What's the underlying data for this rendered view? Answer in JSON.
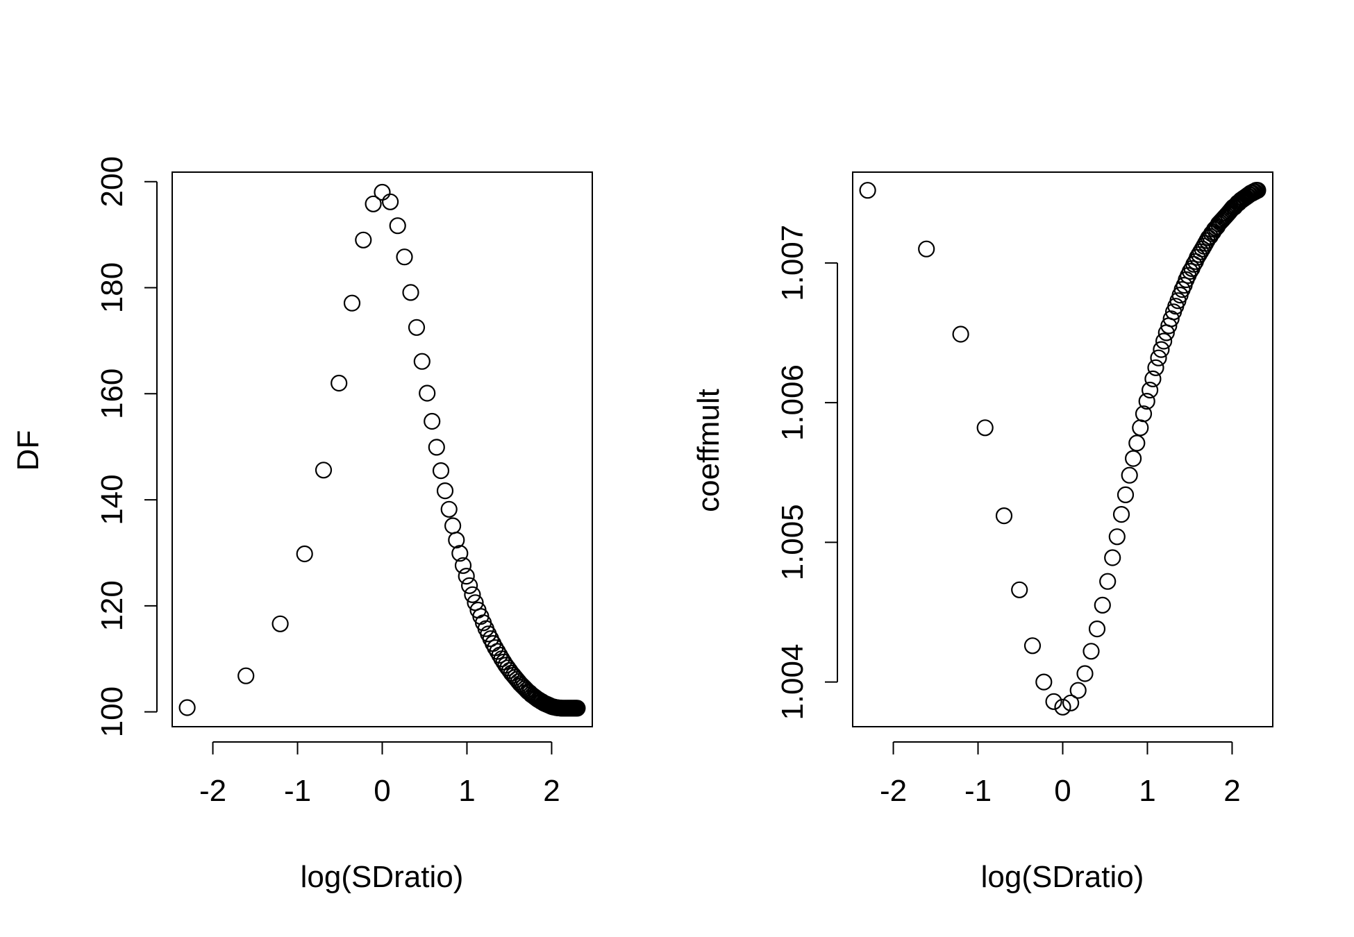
{
  "chart_data": [
    {
      "type": "scatter",
      "xlabel": "log(SDratio)",
      "ylabel": "DF",
      "xlim": [
        -2.48,
        2.48
      ],
      "ylim": [
        97.2,
        201.8
      ],
      "xticks": [
        -2,
        -1,
        0,
        1,
        2
      ],
      "xtick_labels": [
        "-2",
        "-1",
        "0",
        "1",
        "2"
      ],
      "yticks": [
        100,
        120,
        140,
        160,
        180,
        200
      ],
      "ytick_labels": [
        "100",
        "120",
        "140",
        "160",
        "180",
        "200"
      ],
      "grid": false,
      "legend": "none",
      "marker": "open-circle",
      "x": [
        -2.3026,
        -1.6094,
        -1.204,
        -0.9163,
        -0.6931,
        -0.5108,
        -0.3567,
        -0.2231,
        -0.1054,
        0,
        0.0953,
        0.1823,
        0.2624,
        0.3365,
        0.4055,
        0.47,
        0.5306,
        0.5878,
        0.6419,
        0.6931,
        0.7419,
        0.7885,
        0.8329,
        0.8755,
        0.9163,
        0.9555,
        0.9933,
        1.0296,
        1.0647,
        1.0986,
        1.1314,
        1.1632,
        1.1939,
        1.2238,
        1.2528,
        1.2809,
        1.3083,
        1.335,
        1.361,
        1.3863,
        1.411,
        1.4351,
        1.4586,
        1.4816,
        1.5041,
        1.5261,
        1.5476,
        1.5686,
        1.5892,
        1.6094,
        1.6292,
        1.6487,
        1.6677,
        1.6864,
        1.7047,
        1.7228,
        1.7405,
        1.7579,
        1.775,
        1.7918,
        1.8083,
        1.8245,
        1.8405,
        1.8563,
        1.8718,
        1.8871,
        1.9021,
        1.9169,
        1.9315,
        1.9459,
        1.9601,
        1.9741,
        1.9879,
        2.0015,
        2.0149,
        2.0281,
        2.0412,
        2.0541,
        2.0669,
        2.0794,
        2.0919,
        2.1041,
        2.1163,
        2.1282,
        2.1401,
        2.1518,
        2.1633,
        2.1748,
        2.1861,
        2.1972,
        2.2083,
        2.2192,
        2.23,
        2.2407,
        2.2513,
        2.2618,
        2.2721,
        2.2824,
        2.2925,
        2.3026
      ],
      "y": [
        100.8,
        106.8,
        116.6,
        129.8,
        145.6,
        162.0,
        177.1,
        189.0,
        195.8,
        198.0,
        196.2,
        191.7,
        185.8,
        179.1,
        172.5,
        166.1,
        160.1,
        154.8,
        149.9,
        145.5,
        141.7,
        138.2,
        135.1,
        132.4,
        129.9,
        127.6,
        125.6,
        123.8,
        122.1,
        120.6,
        119.2,
        118.0,
        116.8,
        115.7,
        114.7,
        113.8,
        112.9,
        112.1,
        111.4,
        110.7,
        110.0,
        109.4,
        108.8,
        108.3,
        107.8,
        107.3,
        106.9,
        106.5,
        106.1,
        105.7,
        105.3,
        105.0,
        104.7,
        104.4,
        104.1,
        103.8,
        103.6,
        103.3,
        103.1,
        102.9,
        102.7,
        102.5,
        102.3,
        102.2,
        102.0,
        101.9,
        101.7,
        101.6,
        101.5,
        101.4,
        101.3,
        101.2,
        101.1,
        101.0,
        100.95,
        100.9,
        100.85,
        100.8,
        100.78,
        100.76,
        100.74,
        100.72,
        100.7,
        100.7,
        100.7,
        100.7,
        100.7,
        100.7,
        100.7,
        100.7,
        100.7,
        100.7,
        100.7,
        100.7,
        100.7,
        100.7,
        100.7,
        100.7,
        100.7,
        100.7
      ]
    },
    {
      "type": "scatter",
      "xlabel": "log(SDratio)",
      "ylabel": "coeffmult",
      "xlim": [
        -2.48,
        2.48
      ],
      "ylim": [
        1.00368,
        1.00765
      ],
      "xticks": [
        -2,
        -1,
        0,
        1,
        2
      ],
      "xtick_labels": [
        "-2",
        "-1",
        "0",
        "1",
        "2"
      ],
      "yticks": [
        1.004,
        1.005,
        1.006,
        1.007
      ],
      "ytick_labels": [
        "1.004",
        "1.005",
        "1.006",
        "1.007"
      ],
      "grid": false,
      "legend": "none",
      "marker": "open-circle",
      "x": [
        -2.3026,
        -1.6094,
        -1.204,
        -0.9163,
        -0.6931,
        -0.5108,
        -0.3567,
        -0.2231,
        -0.1054,
        0,
        0.0953,
        0.1823,
        0.2624,
        0.3365,
        0.4055,
        0.47,
        0.5306,
        0.5878,
        0.6419,
        0.6931,
        0.7419,
        0.7885,
        0.8329,
        0.8755,
        0.9163,
        0.9555,
        0.9933,
        1.0296,
        1.0647,
        1.0986,
        1.1314,
        1.1632,
        1.1939,
        1.2238,
        1.2528,
        1.2809,
        1.3083,
        1.335,
        1.361,
        1.3863,
        1.411,
        1.4351,
        1.4586,
        1.4816,
        1.5041,
        1.5261,
        1.5476,
        1.5686,
        1.5892,
        1.6094,
        1.6292,
        1.6487,
        1.6677,
        1.6864,
        1.7047,
        1.7228,
        1.7405,
        1.7579,
        1.775,
        1.7918,
        1.8083,
        1.8245,
        1.8405,
        1.8563,
        1.8718,
        1.8871,
        1.9021,
        1.9169,
        1.9315,
        1.9459,
        1.9601,
        1.9741,
        1.9879,
        2.0015,
        2.0149,
        2.0281,
        2.0412,
        2.0541,
        2.0669,
        2.0794,
        2.0919,
        2.1041,
        2.1163,
        2.1282,
        2.1401,
        2.1518,
        2.1633,
        2.1748,
        2.1861,
        2.1972,
        2.2083,
        2.2192,
        2.23,
        2.2407,
        2.2513,
        2.2618,
        2.2721,
        2.2824,
        2.2925,
        2.3026
      ],
      "y": [
        1.00752,
        1.0071,
        1.00649,
        1.00582,
        1.00519,
        1.00466,
        1.00426,
        1.004,
        1.00386,
        1.00382,
        1.00385,
        1.00394,
        1.00406,
        1.00422,
        1.00438,
        1.00455,
        1.00472,
        1.00489,
        1.00504,
        1.0052,
        1.00534,
        1.00548,
        1.0056,
        1.00571,
        1.00582,
        1.00592,
        1.00601,
        1.00609,
        1.00617,
        1.00625,
        1.00632,
        1.00638,
        1.00644,
        1.0065,
        1.00655,
        1.0066,
        1.00665,
        1.00669,
        1.00673,
        1.00677,
        1.00681,
        1.00684,
        1.00688,
        1.00691,
        1.00694,
        1.00696,
        1.00699,
        1.00701,
        1.00704,
        1.00706,
        1.00708,
        1.0071,
        1.00712,
        1.00714,
        1.00716,
        1.00718,
        1.00719,
        1.00721,
        1.00722,
        1.00724,
        1.00725,
        1.00726,
        1.00728,
        1.00729,
        1.0073,
        1.00731,
        1.00732,
        1.00733,
        1.00734,
        1.00735,
        1.00736,
        1.00737,
        1.00738,
        1.00739,
        1.0074,
        1.0074,
        1.00741,
        1.00742,
        1.00743,
        1.00743,
        1.00744,
        1.00745,
        1.00745,
        1.00746,
        1.00746,
        1.00747,
        1.00747,
        1.00748,
        1.00748,
        1.00749,
        1.00749,
        1.0075,
        1.0075,
        1.0075,
        1.00751,
        1.00751,
        1.00751,
        1.00752,
        1.00752,
        1.00752
      ]
    }
  ]
}
